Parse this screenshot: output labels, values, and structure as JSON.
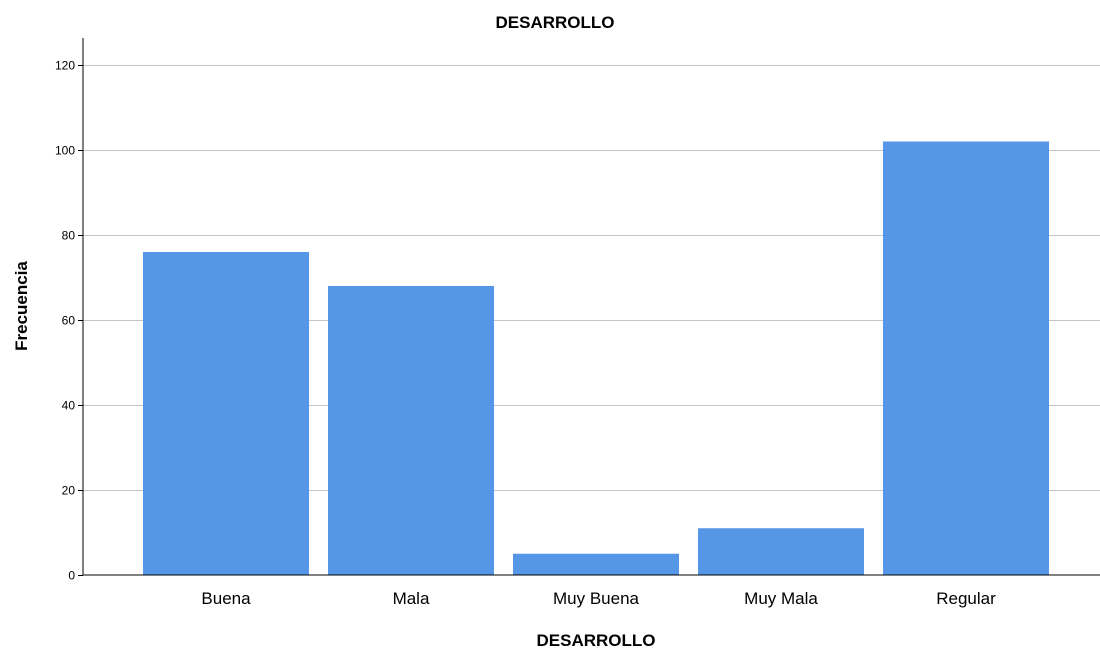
{
  "chart_data": {
    "type": "bar",
    "title": "DESARROLLO",
    "xlabel": "DESARROLLO",
    "ylabel": "Frecuencia",
    "categories": [
      "Buena",
      "Mala",
      "Muy Buena",
      "Muy Mala",
      "Regular"
    ],
    "values": [
      76,
      68,
      5,
      11,
      102
    ],
    "ylim": [
      0,
      120
    ],
    "yticks": [
      0,
      20,
      40,
      60,
      80,
      100,
      120
    ],
    "grid": true,
    "bar_color": "#5596e6",
    "grid_color": "#c4c4c4",
    "axis_color": "#000000"
  }
}
